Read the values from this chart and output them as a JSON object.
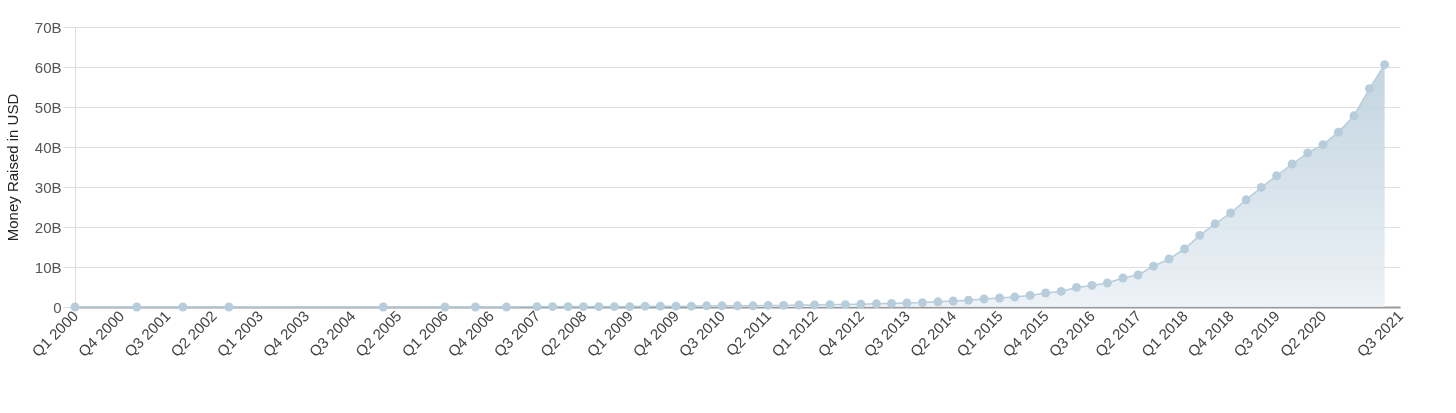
{
  "chart_data": {
    "type": "area",
    "ylabel": "Money Raised in USD",
    "x": [
      "2000-01",
      "2001-01",
      "2001-10",
      "2002-07",
      "2005-01",
      "2006-01",
      "2006-07",
      "2007-01",
      "2007-07",
      "2007-10",
      "2008-01",
      "2008-04",
      "2008-07",
      "2008-10",
      "2009-01",
      "2009-04",
      "2009-07",
      "2009-10",
      "2010-01",
      "2010-04",
      "2010-07",
      "2010-10",
      "2011-01",
      "2011-04",
      "2011-07",
      "2011-10",
      "2012-01",
      "2012-04",
      "2012-07",
      "2012-10",
      "2013-01",
      "2013-04",
      "2013-07",
      "2013-10",
      "2014-01",
      "2014-04",
      "2014-07",
      "2014-10",
      "2015-01",
      "2015-04",
      "2015-07",
      "2015-10",
      "2016-01",
      "2016-04",
      "2016-07",
      "2016-10",
      "2017-01",
      "2017-04",
      "2017-07",
      "2017-10",
      "2018-01",
      "2018-04",
      "2018-07",
      "2018-10",
      "2019-01",
      "2019-04",
      "2019-07",
      "2019-10",
      "2020-01",
      "2020-04",
      "2020-07",
      "2020-10",
      "2021-01",
      "2021-04"
    ],
    "values": [
      0,
      0,
      0,
      0,
      0,
      0,
      0,
      0,
      0.1,
      0.1,
      0.1,
      0.1,
      0.1,
      0.1,
      0.1,
      0.2,
      0.2,
      0.2,
      0.2,
      0.3,
      0.3,
      0.3,
      0.3,
      0.4,
      0.4,
      0.5,
      0.5,
      0.6,
      0.6,
      0.7,
      0.8,
      0.9,
      1.0,
      1.1,
      1.3,
      1.5,
      1.7,
      2.0,
      2.25,
      2.5,
      2.9,
      3.5,
      3.9,
      4.9,
      5.4,
      6.0,
      7.25,
      8.0,
      10.2,
      12.0,
      14.5,
      17.9,
      20.8,
      23.5,
      26.8,
      29.9,
      32.8,
      35.75,
      38.5,
      40.6,
      43.7,
      47.8,
      54.6,
      60.6
    ],
    "color": "#b7cddb",
    "marker": "circle",
    "grid": "y",
    "xlim": [
      "2000-01",
      "2021-07"
    ],
    "xticks": [
      {
        "value": "2000-01",
        "label": "Q1 2000"
      },
      {
        "value": "2000-10",
        "label": "Q4 2000"
      },
      {
        "value": "2001-07",
        "label": "Q3 2001"
      },
      {
        "value": "2002-04",
        "label": "Q2 2002"
      },
      {
        "value": "2003-01",
        "label": "Q1 2003"
      },
      {
        "value": "2003-10",
        "label": "Q4 2003"
      },
      {
        "value": "2004-07",
        "label": "Q3 2004"
      },
      {
        "value": "2005-04",
        "label": "Q2 2005"
      },
      {
        "value": "2006-01",
        "label": "Q1 2006"
      },
      {
        "value": "2006-10",
        "label": "Q4 2006"
      },
      {
        "value": "2007-07",
        "label": "Q3 2007"
      },
      {
        "value": "2008-04",
        "label": "Q2 2008"
      },
      {
        "value": "2009-01",
        "label": "Q1 2009"
      },
      {
        "value": "2009-10",
        "label": "Q4 2009"
      },
      {
        "value": "2010-07",
        "label": "Q3 2010"
      },
      {
        "value": "2011-04",
        "label": "Q2 2011"
      },
      {
        "value": "2012-01",
        "label": "Q1 2012"
      },
      {
        "value": "2012-10",
        "label": "Q4 2012"
      },
      {
        "value": "2013-07",
        "label": "Q3 2013"
      },
      {
        "value": "2014-04",
        "label": "Q2 2014"
      },
      {
        "value": "2015-01",
        "label": "Q1 2015"
      },
      {
        "value": "2015-10",
        "label": "Q4 2015"
      },
      {
        "value": "2016-07",
        "label": "Q3 2016"
      },
      {
        "value": "2017-04",
        "label": "Q2 2017"
      },
      {
        "value": "2018-01",
        "label": "Q1 2018"
      },
      {
        "value": "2018-10",
        "label": "Q4 2018"
      },
      {
        "value": "2019-07",
        "label": "Q3 2019"
      },
      {
        "value": "2020-04",
        "label": "Q2 2020"
      },
      {
        "value": "2021-07",
        "label": "Q3 2021"
      }
    ],
    "ylim": [
      0,
      70
    ],
    "yticks": [
      {
        "value": 0,
        "label": "0"
      },
      {
        "value": 10,
        "label": "10B"
      },
      {
        "value": 20,
        "label": "20B"
      },
      {
        "value": 30,
        "label": "30B"
      },
      {
        "value": 40,
        "label": "40B"
      },
      {
        "value": 50,
        "label": "50B"
      },
      {
        "value": 60,
        "label": "60B"
      },
      {
        "value": 70,
        "label": "70B"
      }
    ]
  }
}
